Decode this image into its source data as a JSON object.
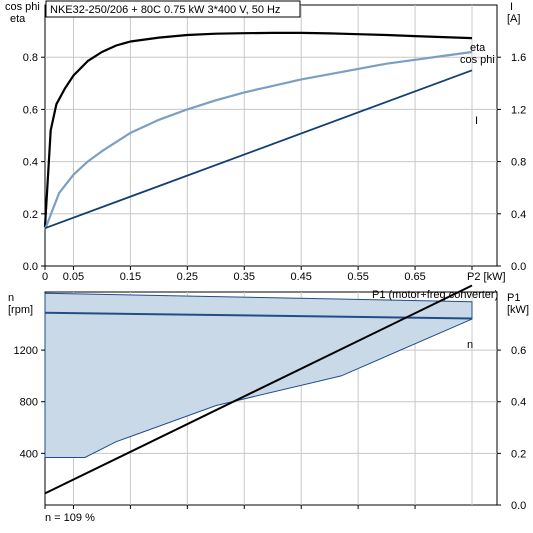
{
  "header": {
    "title": "NKE32-250/206 + 80C   0.75 kW   3*400 V, 50 Hz"
  },
  "footer": {
    "note": "n = 109 %"
  },
  "colors": {
    "eta": "#000000",
    "cos_phi": "#7a9fc2",
    "current": "#123f73",
    "speed_band_fill": "#cad9e8",
    "speed_line": "#1f4f86",
    "p1": "#000000",
    "grid": "#c8c8c8",
    "axis": "#000000"
  },
  "chart_data": [
    {
      "type": "line",
      "left_axis_label_line1": "cos phi",
      "left_axis_label_line2": "eta",
      "right_axis_label_line1": "I",
      "right_axis_label_line2": "[A]",
      "xlabel": "P2 [kW]",
      "xlim": [
        0,
        0.75
      ],
      "ylim_left": [
        0,
        1.0
      ],
      "ylim_right": [
        0,
        2.0
      ],
      "x_ticks": [
        "0",
        "0.05",
        "0.15",
        "0.25",
        "0.35",
        "0.45",
        "0.55",
        "0.65"
      ],
      "x_tick_values": [
        0,
        0.05,
        0.15,
        0.25,
        0.35,
        0.45,
        0.55,
        0.65
      ],
      "y_left_ticks": [
        "0.0",
        "0.2",
        "0.4",
        "0.6",
        "0.8"
      ],
      "y_left_tick_values": [
        0,
        0.2,
        0.4,
        0.6,
        0.8
      ],
      "y_right_ticks": [
        "0.0",
        "0.4",
        "0.8",
        "1.2",
        "1.6"
      ],
      "y_right_tick_values": [
        0,
        0.4,
        0.8,
        1.2,
        1.6
      ],
      "grid": true,
      "series": [
        {
          "name": "eta",
          "axis": "left",
          "x": [
            0,
            0.01,
            0.02,
            0.035,
            0.05,
            0.075,
            0.1,
            0.125,
            0.15,
            0.2,
            0.25,
            0.3,
            0.35,
            0.4,
            0.45,
            0.5,
            0.55,
            0.6,
            0.65,
            0.7,
            0.75
          ],
          "y": [
            0.15,
            0.52,
            0.62,
            0.68,
            0.73,
            0.785,
            0.82,
            0.845,
            0.86,
            0.875,
            0.885,
            0.89,
            0.892,
            0.893,
            0.893,
            0.891,
            0.888,
            0.885,
            0.881,
            0.877,
            0.873
          ]
        },
        {
          "name": "cos phi",
          "axis": "left",
          "x": [
            0,
            0.025,
            0.05,
            0.075,
            0.1,
            0.15,
            0.2,
            0.25,
            0.3,
            0.35,
            0.4,
            0.45,
            0.5,
            0.55,
            0.6,
            0.65,
            0.7,
            0.75
          ],
          "y": [
            0.14,
            0.28,
            0.35,
            0.4,
            0.44,
            0.51,
            0.56,
            0.6,
            0.635,
            0.665,
            0.69,
            0.715,
            0.735,
            0.755,
            0.775,
            0.79,
            0.805,
            0.82
          ]
        },
        {
          "name": "I",
          "axis": "right",
          "x": [
            0,
            0.75
          ],
          "y": [
            0.29,
            1.5
          ]
        }
      ]
    },
    {
      "type": "area",
      "left_axis_label_line1": "n",
      "left_axis_label_line2": "[rpm]",
      "right_axis_label_line1": "P1",
      "right_axis_label_line2": "[kW]",
      "p1_label": "P1 (motor+freq.converter)",
      "n_label": "n",
      "xlim": [
        0,
        0.75
      ],
      "ylim_left": [
        0,
        1650
      ],
      "ylim_right": [
        0,
        0.825
      ],
      "y_left_ticks": [
        "400",
        "800",
        "1200"
      ],
      "y_left_tick_values": [
        400,
        800,
        1200
      ],
      "y_right_ticks": [
        "0.0",
        "0.2",
        "0.4",
        "0.6"
      ],
      "y_right_tick_values": [
        0,
        0.2,
        0.4,
        0.6
      ],
      "grid": true,
      "speed_band": {
        "upper_x": [
          0,
          0.75
        ],
        "upper_y": [
          1640,
          1575
        ],
        "lower_x": [
          0,
          0.07,
          0.125,
          0.3,
          0.52,
          0.75
        ],
        "lower_y": [
          368,
          368,
          490,
          770,
          1000,
          1440
        ]
      },
      "series": [
        {
          "name": "n",
          "axis": "left",
          "x": [
            0,
            0.75
          ],
          "y": [
            1490,
            1445
          ]
        },
        {
          "name": "P1 (motor+freq.converter)",
          "axis": "right",
          "x": [
            0,
            0.75
          ],
          "y": [
            0.045,
            0.85
          ]
        }
      ]
    }
  ]
}
